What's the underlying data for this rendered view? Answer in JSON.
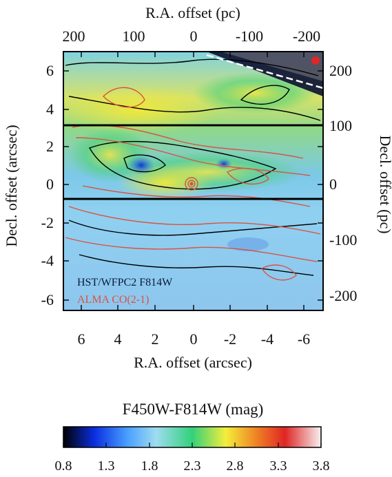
{
  "figure": {
    "top_axis_label": "R.A. offset (pc)",
    "bottom_axis_label": "R.A. offset (arcsec)",
    "left_axis_label": "Decl. offset (arcsec)",
    "right_axis_label": "Decl. offset (pc)",
    "top_ticks": [
      "200",
      "100",
      "0",
      "-100",
      "-200"
    ],
    "bottom_ticks": [
      "6",
      "4",
      "2",
      "0",
      "-2",
      "-4",
      "-6"
    ],
    "left_ticks": [
      "6",
      "4",
      "2",
      "0",
      "-2",
      "-4",
      "-6"
    ],
    "right_ticks": [
      "200",
      "100",
      "0",
      "-100",
      "-200"
    ],
    "legend_hst": "HST/WFPC2 F814W",
    "legend_alma": "ALMA CO(2-1)",
    "colorbar_title": "F450W-F814W (mag)",
    "colorbar_ticks": [
      "0.8",
      "1.3",
      "1.8",
      "2.3",
      "2.8",
      "3.3",
      "3.8"
    ],
    "colors": {
      "hst_contour": "#000000",
      "alma_contour": "#d9533f",
      "legend_hst_text": "#0a1a3a",
      "legend_alma_text": "#d9533f",
      "colormap": [
        "#000000",
        "#0a2ee0",
        "#4aa0ff",
        "#9edcf0",
        "#33d17a",
        "#f4ee3c",
        "#f08a25",
        "#e02525",
        "#f7f0f0"
      ]
    }
  }
}
